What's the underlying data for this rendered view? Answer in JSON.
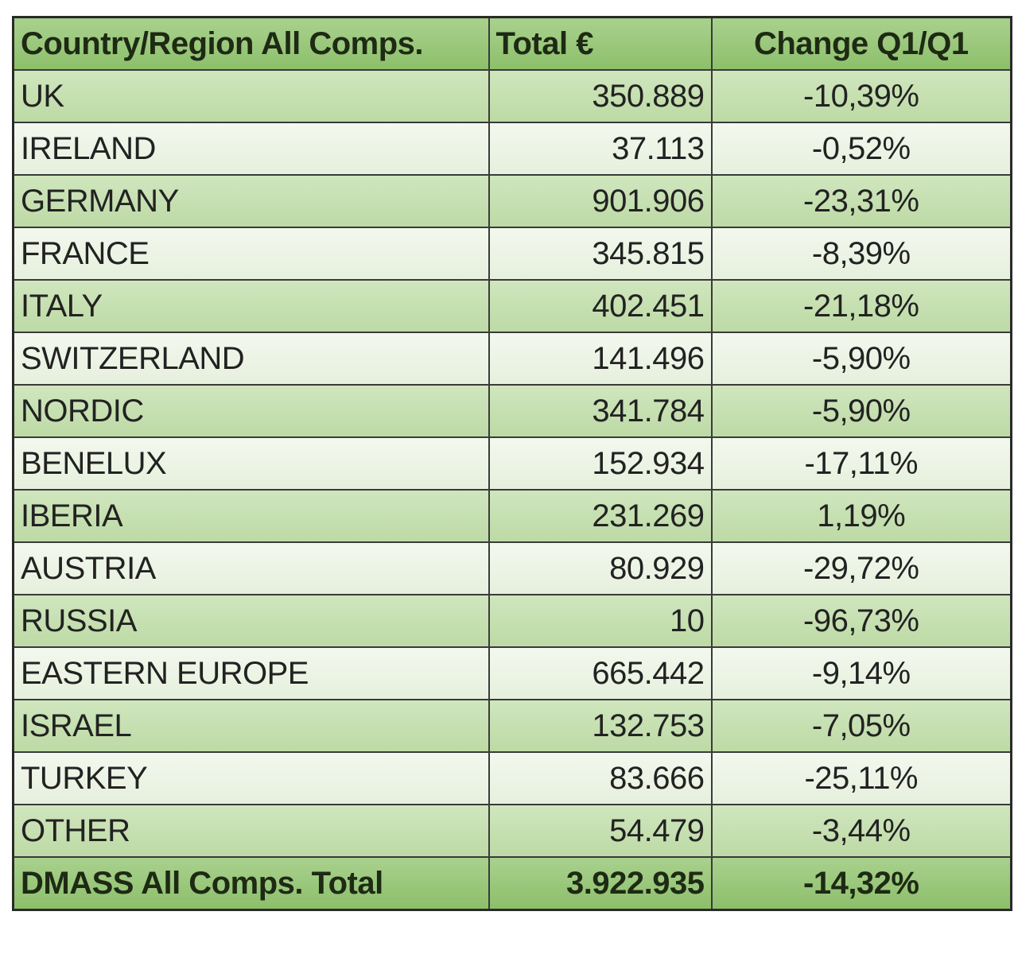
{
  "table": {
    "header": [
      "Country/Region All Comps.",
      "Total €",
      "Change Q1/Q1"
    ],
    "rows": [
      [
        "UK",
        "350.889",
        "-10,39%"
      ],
      [
        "IRELAND",
        "37.113",
        "-0,52%"
      ],
      [
        "GERMANY",
        "901.906",
        "-23,31%"
      ],
      [
        "FRANCE",
        "345.815",
        "-8,39%"
      ],
      [
        "ITALY",
        "402.451",
        "-21,18%"
      ],
      [
        "SWITZERLAND",
        "141.496",
        "-5,90%"
      ],
      [
        "NORDIC",
        "341.784",
        "-5,90%"
      ],
      [
        "BENELUX",
        "152.934",
        "-17,11%"
      ],
      [
        "IBERIA",
        "231.269",
        "1,19%"
      ],
      [
        "AUSTRIA",
        "80.929",
        "-29,72%"
      ],
      [
        "RUSSIA",
        "10",
        "-96,73%"
      ],
      [
        "EASTERN EUROPE",
        "665.442",
        "-9,14%"
      ],
      [
        "ISRAEL",
        "132.753",
        "-7,05%"
      ],
      [
        "TURKEY",
        "83.666",
        "-25,11%"
      ],
      [
        "OTHER",
        "54.479",
        "-3,44%"
      ]
    ],
    "total": [
      "DMASS All Comps. Total",
      "3.922.935",
      "-14,32%"
    ]
  }
}
